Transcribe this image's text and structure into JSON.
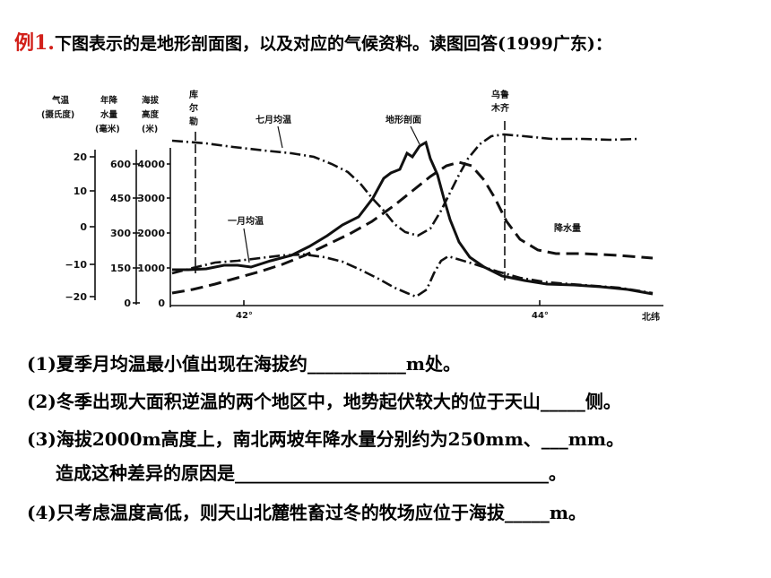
{
  "header": {
    "tag": "例1.",
    "text": "下图表示的是地形剖面图，以及对应的气候资料。读图回答(1999广东)："
  },
  "figure": {
    "col_headers": {
      "temp": [
        "气温",
        "(摄氏度)"
      ],
      "precip": [
        "年降",
        "水量",
        "(毫米)"
      ],
      "alt": [
        "海拔",
        "高度",
        "(米)"
      ]
    },
    "temp_ticks": [
      "20",
      "10",
      "0",
      "−10",
      "−20"
    ],
    "precip_ticks": [
      "600",
      "450",
      "300",
      "150",
      "0"
    ],
    "alt_ticks": [
      "4000",
      "3000",
      "2000",
      "1000",
      "0"
    ],
    "x_ticks": [
      "42°",
      "44°"
    ],
    "x_unit": "北纬",
    "places": {
      "kuerle": [
        "库",
        "尔",
        "勒"
      ],
      "urumqi": [
        "乌鲁",
        "木齐"
      ]
    },
    "labels": {
      "july": "七月均温",
      "jan": "一月均温",
      "terrain": "地形剖面",
      "precip": "降水量"
    }
  },
  "questions": {
    "q1": "(1)夏季月均温最小值出现在海拔约___________m处。",
    "q2": "(2)冬季出现大面积逆温的两个地区中，地势起伏较大的位于天山_____侧。",
    "q3a": "(3)海拔2000m高度上，南北两坡年降水量分别约为250mm、___mm。",
    "q3b": "造成这种差异的原因是___________________________________。",
    "q4": "(4)只考虑温度高低，则天山北麓牲畜过冬的牧场应位于海拔_____m。"
  }
}
